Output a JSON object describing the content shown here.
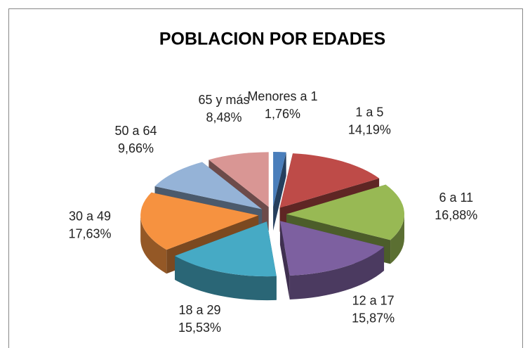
{
  "chart_data": {
    "type": "pie",
    "title": "POBLACION POR EDADES",
    "categories": [
      "Menores a 1",
      "1 a 5",
      "6 a 11",
      "12 a 17",
      "18 a 29",
      "30 a 49",
      "50 a 64",
      "65 y más"
    ],
    "values": [
      1.76,
      14.19,
      16.88,
      15.87,
      15.53,
      17.63,
      9.66,
      8.48
    ],
    "value_labels": [
      "1,76%",
      "14,19%",
      "16,88%",
      "15,87%",
      "15,53%",
      "17,63%",
      "9,66%",
      "8,48%"
    ],
    "colors": [
      "#4a7ebb",
      "#be4b48",
      "#98b954",
      "#7d60a0",
      "#46aac5",
      "#f69240",
      "#95b3d7",
      "#d99694"
    ]
  }
}
